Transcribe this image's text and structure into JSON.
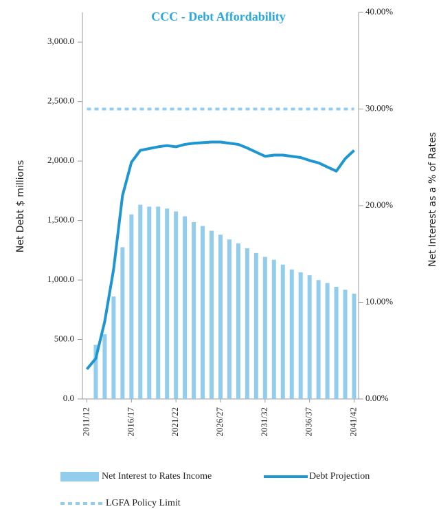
{
  "chart_data": {
    "type": "combo",
    "title": "CCC - Debt Affordability",
    "ylabel": "Net Debt $ millions",
    "y2label": "Net Interest as a % of Rates",
    "categories": [
      "2011/12",
      null,
      null,
      null,
      null,
      "2016/17",
      null,
      null,
      null,
      null,
      "2021/22",
      null,
      null,
      null,
      null,
      "2026/27",
      null,
      null,
      null,
      null,
      "2031/32",
      null,
      null,
      null,
      null,
      "2036/37",
      null,
      null,
      null,
      null,
      "2041/42"
    ],
    "ylim": [
      0,
      3250
    ],
    "yticks": [
      {
        "value": 0,
        "label": "0.0"
      },
      {
        "value": 500,
        "label": "500.0"
      },
      {
        "value": 1000,
        "label": "1,000.0"
      },
      {
        "value": 1500,
        "label": "1,500.0"
      },
      {
        "value": 2000,
        "label": "2,000.0"
      },
      {
        "value": 2500,
        "label": "2,500.0"
      },
      {
        "value": 3000,
        "label": "3,000.0"
      }
    ],
    "y2lim": [
      0,
      40
    ],
    "y2ticks": [
      {
        "value": 0,
        "label": "0.00%"
      },
      {
        "value": 10,
        "label": "10.00%"
      },
      {
        "value": 20,
        "label": "20.00%"
      },
      {
        "value": 30,
        "label": "30.00%"
      },
      {
        "value": 40,
        "label": "40.00%"
      }
    ],
    "series": [
      {
        "name": "Net Interest to Rates Income",
        "type": "bar",
        "axis": "y2",
        "color": "#93cdee",
        "values": [
          null,
          5.6,
          6.7,
          10.6,
          15.7,
          19.1,
          20.1,
          19.9,
          19.9,
          19.7,
          19.4,
          18.9,
          18.3,
          17.9,
          17.4,
          17.0,
          16.5,
          16.1,
          15.6,
          15.1,
          14.7,
          14.4,
          13.9,
          13.4,
          13.1,
          12.8,
          12.3,
          12.0,
          11.6,
          11.3,
          10.9
        ]
      },
      {
        "name": "Debt Projection",
        "type": "line",
        "color": "#1e96d2",
        "values": [
          250,
          340,
          650,
          1090,
          1710,
          1990,
          2090,
          2105,
          2120,
          2130,
          2120,
          2140,
          2150,
          2155,
          2160,
          2160,
          2150,
          2140,
          2110,
          2075,
          2040,
          2050,
          2050,
          2040,
          2030,
          2005,
          1985,
          1950,
          1915,
          2020,
          2090
        ]
      },
      {
        "name": "LGFA Policy Limit",
        "type": "dashed",
        "axis": "y2",
        "color": "#93cdee",
        "values": [
          30,
          30,
          30,
          30,
          30,
          30,
          30,
          30,
          30,
          30,
          30,
          30,
          30,
          30,
          30,
          30,
          30,
          30,
          30,
          30,
          30,
          30,
          30,
          30,
          30,
          30,
          30,
          30,
          30,
          30,
          30
        ]
      }
    ]
  }
}
